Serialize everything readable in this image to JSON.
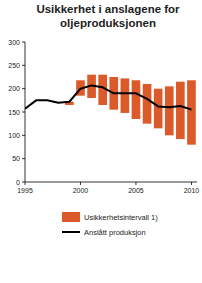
{
  "chart_data": {
    "type": "line",
    "title": [
      "Usikkerhet i anslagene for",
      "oljeproduksjonen"
    ],
    "series": [
      {
        "name": "Usikkerhetsintervall 1)",
        "type": "floating_bar",
        "color": "#dc5a2a",
        "x": [
          1999,
          2000,
          2001,
          2002,
          2003,
          2004,
          2005,
          2006,
          2007,
          2008,
          2009,
          2010
        ],
        "low": [
          165,
          185,
          180,
          165,
          155,
          148,
          135,
          125,
          115,
          100,
          92,
          80
        ],
        "high": [
          172,
          218,
          230,
          230,
          225,
          222,
          218,
          210,
          200,
          205,
          215,
          218
        ]
      },
      {
        "name": "Anslått produksjon",
        "type": "line",
        "color": "#000000",
        "x": [
          1995,
          1996,
          1997,
          1998,
          1999,
          2000,
          2001,
          2002,
          2003,
          2004,
          2005,
          2006,
          2007,
          2008,
          2009,
          2010
        ],
        "values": [
          157,
          175,
          175,
          170,
          172,
          200,
          207,
          203,
          190,
          190,
          190,
          178,
          162,
          160,
          163,
          155
        ]
      }
    ],
    "xlim": [
      1995,
      2010.5
    ],
    "xticks": [
      1995,
      2000,
      2005,
      2010
    ],
    "ylim": [
      0,
      300
    ],
    "yticks": [
      0,
      50,
      100,
      150,
      200,
      250,
      300
    ],
    "grid": false,
    "legend": "bottom"
  }
}
